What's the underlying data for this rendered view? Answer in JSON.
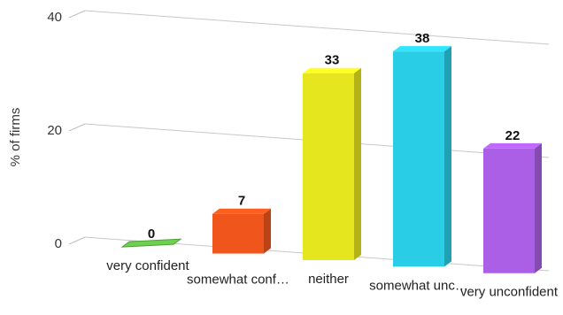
{
  "chart_data": {
    "type": "bar",
    "title": "",
    "xlabel": "",
    "ylabel": "% of firms",
    "ylim": [
      0,
      40
    ],
    "yticks": [
      0,
      20,
      40
    ],
    "grid": true,
    "categories": [
      "very confident",
      "somewhat conf…",
      "neither",
      "somewhat unc…",
      "very unconfident"
    ],
    "values": [
      0,
      7,
      33,
      38,
      22
    ],
    "data_labels": [
      "0",
      "7",
      "33",
      "38",
      "22"
    ],
    "colors": [
      "#6cd14e",
      "#f0561c",
      "#e6e61e",
      "#29cde6",
      "#ab5ee6"
    ],
    "style": "3d"
  }
}
